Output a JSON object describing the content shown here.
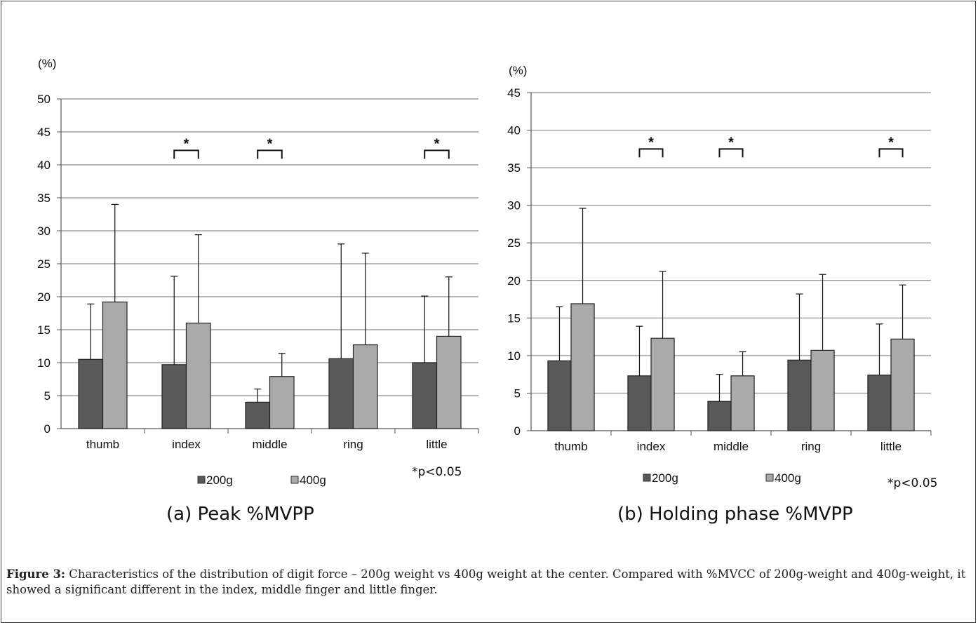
{
  "chart_data": [
    {
      "id": "a",
      "type": "bar",
      "title": "(a) Peak %MVPP",
      "ylabel": "(%)",
      "ylim": [
        0,
        50
      ],
      "ytick_step": 5,
      "grid": true,
      "legend_position": "bottom",
      "categories": [
        "thumb",
        "index",
        "middle",
        "ring",
        "little"
      ],
      "series": [
        {
          "name": "200g",
          "values": [
            10.5,
            9.7,
            4.0,
            10.6,
            10.0
          ],
          "errors": [
            8.4,
            13.4,
            2.0,
            17.4,
            10.1
          ]
        },
        {
          "name": "400g",
          "values": [
            19.2,
            16.0,
            7.9,
            12.7,
            14.0
          ],
          "errors": [
            14.8,
            13.4,
            3.5,
            13.9,
            9.0
          ]
        }
      ],
      "significance": {
        "categories": [
          "index",
          "middle",
          "little"
        ],
        "marker": "*",
        "level": 42.2
      },
      "note": "*p<0.05"
    },
    {
      "id": "b",
      "type": "bar",
      "title": "(b) Holding phase %MVPP",
      "ylabel": "(%)",
      "ylim": [
        0,
        45
      ],
      "ytick_step": 5,
      "grid": true,
      "legend_position": "bottom",
      "categories": [
        "thumb",
        "index",
        "middle",
        "ring",
        "little"
      ],
      "series": [
        {
          "name": "200g",
          "values": [
            9.3,
            7.3,
            3.9,
            9.4,
            7.4
          ],
          "errors": [
            7.2,
            6.6,
            3.6,
            8.8,
            6.8
          ]
        },
        {
          "name": "400g",
          "values": [
            16.9,
            12.3,
            7.3,
            10.7,
            12.2
          ],
          "errors": [
            12.7,
            8.9,
            3.2,
            10.1,
            7.2
          ]
        }
      ],
      "significance": {
        "categories": [
          "index",
          "middle",
          "little"
        ],
        "marker": "*",
        "level": 37.5
      },
      "note": "*p<0.05"
    }
  ],
  "colors": {
    "series_200g": "#595959",
    "series_400g": "#aaaaaa",
    "grid": "#8c8c8c",
    "axis": "#555555",
    "text": "#111111"
  },
  "caption": {
    "label": "Figure 3:",
    "text": " Characteristics of the distribution of digit force – 200g weight vs 400g weight at the center. Compared with %MVCC of 200g-weight and 400g-weight, it showed a significant different in the index, middle finger and little finger."
  }
}
